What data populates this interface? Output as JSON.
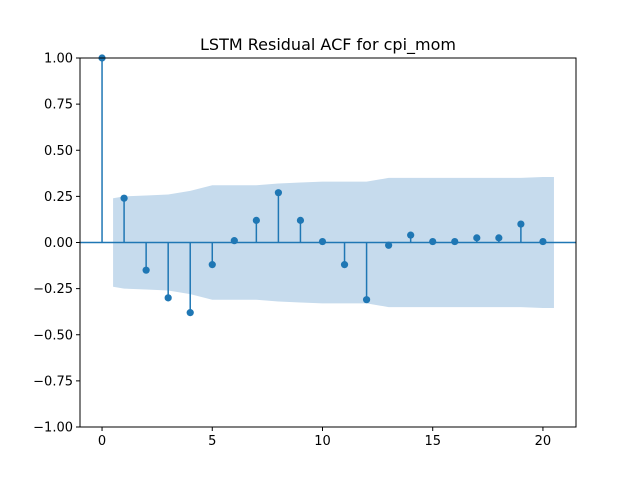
{
  "chart_data": {
    "type": "stem",
    "title": "LSTM Residual ACF for cpi_mom",
    "xlabel": "",
    "ylabel": "",
    "xlim": [
      -1,
      21.5
    ],
    "ylim": [
      -1.0,
      1.0
    ],
    "x_ticks": [
      0,
      5,
      10,
      15,
      20
    ],
    "y_ticks": [
      -1.0,
      -0.75,
      -0.5,
      -0.25,
      0.0,
      0.25,
      0.5,
      0.75,
      1.0
    ],
    "x_tick_labels": [
      "0",
      "5",
      "10",
      "15",
      "20"
    ],
    "y_tick_labels": [
      "−1.00",
      "−0.75",
      "−0.50",
      "−0.25",
      "0.00",
      "0.25",
      "0.50",
      "0.75",
      "1.00"
    ],
    "grid": false,
    "colors": {
      "stem": "#1f77b4",
      "band": "#c6dbed",
      "axis": "#000000"
    },
    "lags": [
      0,
      1,
      2,
      3,
      4,
      5,
      6,
      7,
      8,
      9,
      10,
      11,
      12,
      13,
      14,
      15,
      16,
      17,
      18,
      19,
      20
    ],
    "acf": [
      1.0,
      0.24,
      -0.15,
      -0.3,
      -0.38,
      -0.12,
      0.01,
      0.12,
      0.27,
      0.12,
      0.005,
      -0.12,
      -0.31,
      -0.015,
      0.04,
      0.005,
      0.005,
      0.025,
      0.025,
      0.1,
      0.005
    ],
    "confidence_band": {
      "x": [
        0.5,
        1,
        2,
        3,
        4,
        5,
        6,
        7,
        8,
        9,
        10,
        11,
        12,
        13,
        14,
        15,
        16,
        17,
        18,
        19,
        20,
        20.5
      ],
      "upper": [
        0.24,
        0.25,
        0.255,
        0.26,
        0.28,
        0.31,
        0.31,
        0.31,
        0.32,
        0.325,
        0.33,
        0.33,
        0.33,
        0.35,
        0.35,
        0.35,
        0.35,
        0.35,
        0.35,
        0.35,
        0.355,
        0.355
      ]
    }
  }
}
